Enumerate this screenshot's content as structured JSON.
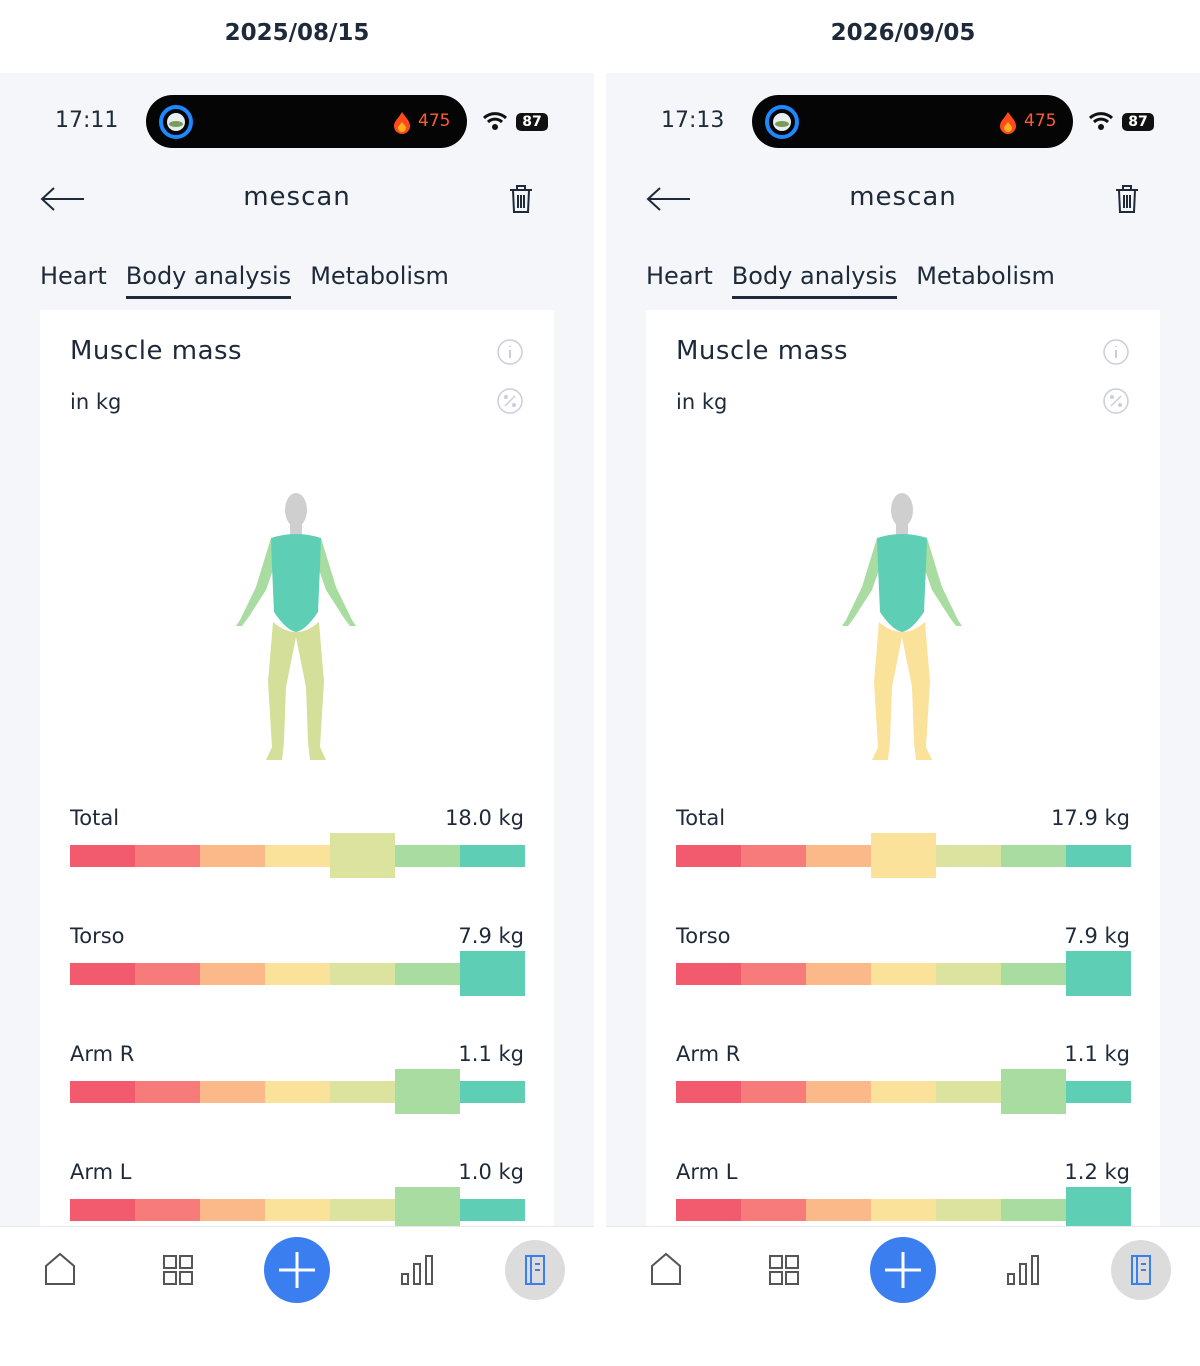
{
  "scale_colors": [
    "#f25a6e",
    "#f77b7b",
    "#fbb98a",
    "#fbe29a",
    "#dce39e",
    "#a8dca0",
    "#5ecfb5"
  ],
  "panels": [
    {
      "date": "2025/08/15",
      "status": {
        "time": "17:11",
        "calories": 475,
        "battery": 87
      },
      "header": {
        "title": "mescan"
      },
      "tabs": [
        "Heart",
        "Body analysis",
        "Metabolism"
      ],
      "active_tab": 1,
      "card": {
        "title": "Muscle mass",
        "unit": "in kg",
        "metrics": [
          {
            "label": "Total",
            "value": "18.0 kg",
            "level": 4
          },
          {
            "label": "Torso",
            "value": "7.9 kg",
            "level": 6
          },
          {
            "label": "Arm R",
            "value": "1.1 kg",
            "level": 5
          },
          {
            "label": "Arm L",
            "value": "1.0 kg",
            "level": 5
          }
        ]
      },
      "body_colors": {
        "torso": "#5ecfb5",
        "arms": "#a8dca0",
        "legs": "#d4e09a"
      }
    },
    {
      "date": "2026/09/05",
      "status": {
        "time": "17:13",
        "calories": 475,
        "battery": 87
      },
      "header": {
        "title": "mescan"
      },
      "tabs": [
        "Heart",
        "Body analysis",
        "Metabolism"
      ],
      "active_tab": 1,
      "card": {
        "title": "Muscle mass",
        "unit": "in kg",
        "metrics": [
          {
            "label": "Total",
            "value": "17.9 kg",
            "level": 3
          },
          {
            "label": "Torso",
            "value": "7.9 kg",
            "level": 6
          },
          {
            "label": "Arm R",
            "value": "1.1 kg",
            "level": 5
          },
          {
            "label": "Arm L",
            "value": "1.2 kg",
            "level": 6
          }
        ]
      },
      "body_colors": {
        "torso": "#5ecfb5",
        "arms": "#a8dca0",
        "legs": "#fbe29a"
      }
    }
  ]
}
